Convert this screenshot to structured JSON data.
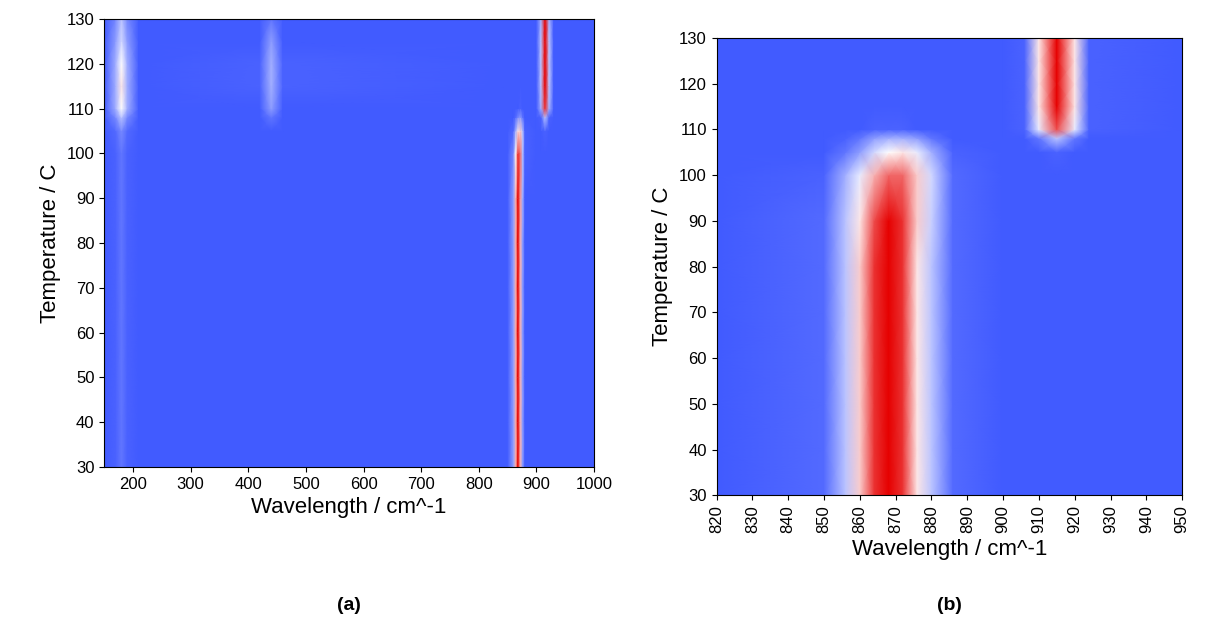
{
  "chart_data": [
    {
      "type": "heatmap",
      "caption": "(a)",
      "x_label": "Wavelength / cm^-1",
      "y_label": "Temperature / C",
      "xlim": [
        150,
        1000
      ],
      "ylim": [
        30,
        130
      ],
      "xticks": [
        200,
        300,
        400,
        500,
        600,
        700,
        800,
        900,
        1000
      ],
      "yticks": [
        30,
        40,
        50,
        60,
        70,
        80,
        90,
        100,
        110,
        120,
        130
      ],
      "color_range": [
        0,
        1
      ],
      "x": [
        150,
        170,
        180,
        190,
        210,
        420,
        440,
        460,
        850,
        860,
        864,
        868,
        872,
        876,
        880,
        900,
        908,
        915,
        922,
        930,
        1000
      ],
      "y": [
        30,
        40,
        50,
        60,
        70,
        80,
        90,
        100,
        105,
        108,
        110,
        115,
        120,
        125,
        130
      ],
      "cells": [
        [
          0.08,
          0.1,
          0.15,
          0.1,
          0.08,
          0.08,
          0.08,
          0.08,
          0.08,
          0.25,
          0.65,
          1,
          0.65,
          0.25,
          0.08,
          0.08,
          0.08,
          0.08,
          0.08,
          0.08,
          0.08
        ],
        [
          0.08,
          0.1,
          0.15,
          0.1,
          0.08,
          0.08,
          0.08,
          0.08,
          0.08,
          0.25,
          0.65,
          1,
          0.65,
          0.25,
          0.08,
          0.08,
          0.08,
          0.08,
          0.08,
          0.08,
          0.08
        ],
        [
          0.08,
          0.1,
          0.15,
          0.1,
          0.08,
          0.08,
          0.08,
          0.08,
          0.08,
          0.25,
          0.65,
          1,
          0.65,
          0.25,
          0.08,
          0.08,
          0.08,
          0.08,
          0.08,
          0.08,
          0.08
        ],
        [
          0.08,
          0.1,
          0.15,
          0.1,
          0.08,
          0.08,
          0.08,
          0.08,
          0.08,
          0.25,
          0.65,
          1,
          0.65,
          0.25,
          0.08,
          0.08,
          0.08,
          0.08,
          0.08,
          0.08,
          0.08
        ],
        [
          0.08,
          0.1,
          0.15,
          0.1,
          0.08,
          0.08,
          0.08,
          0.08,
          0.08,
          0.25,
          0.65,
          1,
          0.65,
          0.25,
          0.08,
          0.08,
          0.08,
          0.08,
          0.08,
          0.08,
          0.08
        ],
        [
          0.08,
          0.1,
          0.15,
          0.1,
          0.08,
          0.08,
          0.08,
          0.08,
          0.08,
          0.25,
          0.65,
          1,
          0.65,
          0.25,
          0.08,
          0.08,
          0.08,
          0.08,
          0.08,
          0.08,
          0.08
        ],
        [
          0.08,
          0.1,
          0.15,
          0.1,
          0.08,
          0.08,
          0.08,
          0.08,
          0.08,
          0.25,
          0.65,
          1,
          0.7,
          0.3,
          0.08,
          0.08,
          0.08,
          0.08,
          0.08,
          0.08,
          0.08
        ],
        [
          0.08,
          0.1,
          0.15,
          0.1,
          0.08,
          0.08,
          0.08,
          0.08,
          0.08,
          0.2,
          0.5,
          0.9,
          0.8,
          0.35,
          0.1,
          0.08,
          0.08,
          0.08,
          0.08,
          0.08,
          0.08
        ],
        [
          0.08,
          0.12,
          0.2,
          0.12,
          0.08,
          0.08,
          0.08,
          0.08,
          0.08,
          0.12,
          0.3,
          0.55,
          0.6,
          0.35,
          0.1,
          0.08,
          0.08,
          0.1,
          0.08,
          0.08,
          0.08
        ],
        [
          0.08,
          0.2,
          0.35,
          0.2,
          0.08,
          0.08,
          0.15,
          0.08,
          0.08,
          0.08,
          0.12,
          0.2,
          0.25,
          0.15,
          0.08,
          0.08,
          0.1,
          0.35,
          0.1,
          0.08,
          0.08
        ],
        [
          0.08,
          0.3,
          0.5,
          0.3,
          0.08,
          0.08,
          0.25,
          0.08,
          0.08,
          0.08,
          0.08,
          0.08,
          0.1,
          0.08,
          0.08,
          0.08,
          0.3,
          0.9,
          0.3,
          0.08,
          0.08
        ],
        [
          0.08,
          0.3,
          0.55,
          0.3,
          0.08,
          0.1,
          0.3,
          0.1,
          0.08,
          0.08,
          0.08,
          0.08,
          0.08,
          0.08,
          0.08,
          0.08,
          0.35,
          1,
          0.35,
          0.08,
          0.08
        ],
        [
          0.08,
          0.3,
          0.5,
          0.3,
          0.08,
          0.1,
          0.3,
          0.1,
          0.08,
          0.08,
          0.08,
          0.08,
          0.08,
          0.08,
          0.08,
          0.08,
          0.35,
          1,
          0.35,
          0.08,
          0.08
        ],
        [
          0.08,
          0.25,
          0.4,
          0.25,
          0.08,
          0.08,
          0.25,
          0.08,
          0.08,
          0.08,
          0.08,
          0.08,
          0.08,
          0.08,
          0.08,
          0.08,
          0.35,
          1,
          0.35,
          0.08,
          0.08
        ],
        [
          0.08,
          0.2,
          0.35,
          0.2,
          0.08,
          0.08,
          0.15,
          0.08,
          0.08,
          0.08,
          0.08,
          0.08,
          0.08,
          0.08,
          0.08,
          0.08,
          0.3,
          1,
          0.3,
          0.08,
          0.08
        ]
      ]
    },
    {
      "type": "heatmap",
      "caption": "(b)",
      "x_label": "Wavelength / cm^-1",
      "y_label": "Temperature / C",
      "xlim": [
        820,
        950
      ],
      "ylim": [
        30,
        130
      ],
      "xticks": [
        820,
        830,
        840,
        850,
        860,
        870,
        880,
        890,
        900,
        910,
        920,
        930,
        940,
        950
      ],
      "yticks": [
        30,
        40,
        50,
        60,
        70,
        80,
        90,
        100,
        110,
        120,
        130
      ],
      "color_range": [
        0,
        1
      ],
      "x": [
        820,
        850,
        856,
        860,
        864,
        868,
        872,
        876,
        880,
        886,
        900,
        906,
        910,
        915,
        920,
        924,
        950
      ],
      "y": [
        30,
        40,
        50,
        60,
        70,
        80,
        90,
        100,
        105,
        108,
        110,
        115,
        120,
        125,
        130
      ],
      "cells": [
        [
          0.08,
          0.12,
          0.35,
          0.6,
          0.9,
          1,
          0.9,
          0.55,
          0.35,
          0.12,
          0.08,
          0.08,
          0.08,
          0.08,
          0.08,
          0.08,
          0.08
        ],
        [
          0.08,
          0.12,
          0.35,
          0.6,
          0.9,
          1,
          0.9,
          0.55,
          0.35,
          0.12,
          0.08,
          0.08,
          0.08,
          0.08,
          0.08,
          0.08,
          0.08
        ],
        [
          0.08,
          0.12,
          0.35,
          0.6,
          0.9,
          1,
          0.9,
          0.55,
          0.35,
          0.12,
          0.08,
          0.08,
          0.08,
          0.08,
          0.08,
          0.08,
          0.08
        ],
        [
          0.08,
          0.12,
          0.35,
          0.6,
          0.9,
          1,
          0.9,
          0.55,
          0.35,
          0.12,
          0.08,
          0.08,
          0.08,
          0.08,
          0.08,
          0.08,
          0.08
        ],
        [
          0.08,
          0.12,
          0.35,
          0.6,
          0.9,
          1,
          0.9,
          0.55,
          0.35,
          0.12,
          0.08,
          0.08,
          0.08,
          0.08,
          0.08,
          0.08,
          0.08
        ],
        [
          0.08,
          0.12,
          0.35,
          0.6,
          0.9,
          1,
          0.9,
          0.55,
          0.35,
          0.12,
          0.08,
          0.08,
          0.08,
          0.08,
          0.08,
          0.08,
          0.08
        ],
        [
          0.08,
          0.12,
          0.35,
          0.55,
          0.85,
          1,
          0.9,
          0.6,
          0.38,
          0.12,
          0.08,
          0.08,
          0.08,
          0.08,
          0.08,
          0.08,
          0.08
        ],
        [
          0.08,
          0.1,
          0.3,
          0.45,
          0.65,
          0.8,
          0.8,
          0.6,
          0.4,
          0.12,
          0.08,
          0.08,
          0.08,
          0.08,
          0.08,
          0.08,
          0.08
        ],
        [
          0.08,
          0.08,
          0.15,
          0.25,
          0.4,
          0.5,
          0.55,
          0.45,
          0.3,
          0.1,
          0.08,
          0.08,
          0.08,
          0.1,
          0.08,
          0.08,
          0.08
        ],
        [
          0.08,
          0.08,
          0.1,
          0.15,
          0.25,
          0.3,
          0.3,
          0.25,
          0.15,
          0.08,
          0.08,
          0.08,
          0.15,
          0.35,
          0.15,
          0.08,
          0.08
        ],
        [
          0.08,
          0.08,
          0.08,
          0.08,
          0.1,
          0.1,
          0.1,
          0.08,
          0.08,
          0.08,
          0.08,
          0.1,
          0.45,
          0.85,
          0.45,
          0.1,
          0.08
        ],
        [
          0.08,
          0.08,
          0.08,
          0.08,
          0.08,
          0.08,
          0.08,
          0.08,
          0.08,
          0.08,
          0.08,
          0.1,
          0.55,
          1,
          0.55,
          0.1,
          0.08
        ],
        [
          0.08,
          0.08,
          0.08,
          0.08,
          0.08,
          0.08,
          0.08,
          0.08,
          0.08,
          0.08,
          0.08,
          0.1,
          0.55,
          1,
          0.55,
          0.1,
          0.08
        ],
        [
          0.08,
          0.08,
          0.08,
          0.08,
          0.08,
          0.08,
          0.08,
          0.08,
          0.08,
          0.08,
          0.08,
          0.1,
          0.55,
          1,
          0.55,
          0.1,
          0.08
        ],
        [
          0.08,
          0.08,
          0.08,
          0.08,
          0.08,
          0.08,
          0.08,
          0.08,
          0.08,
          0.08,
          0.08,
          0.1,
          0.55,
          1,
          0.55,
          0.1,
          0.08
        ]
      ]
    }
  ]
}
